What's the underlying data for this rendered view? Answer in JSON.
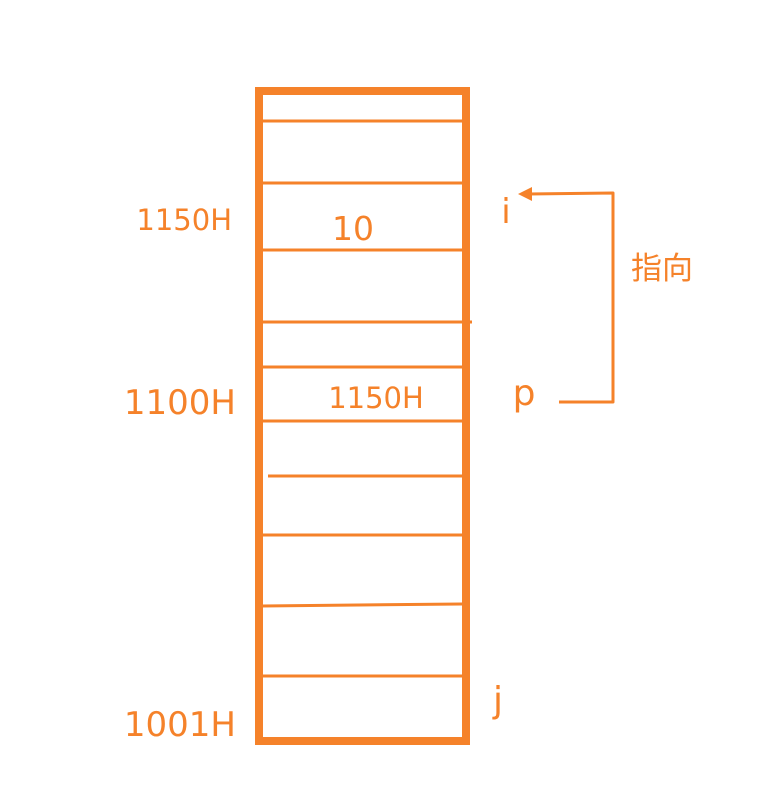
{
  "colors": {
    "stroke": "#f5822a",
    "text": "#f5822a",
    "background": "#ffffff"
  },
  "addresses": {
    "a1150": "1150H",
    "a1100": "1100H",
    "a1001": "1001H"
  },
  "cells": {
    "value_at_1150": "10",
    "value_at_1100": "1150H"
  },
  "variables": {
    "i": "i",
    "p": "p",
    "j": "j"
  },
  "annotation": {
    "points_to": "指向"
  }
}
